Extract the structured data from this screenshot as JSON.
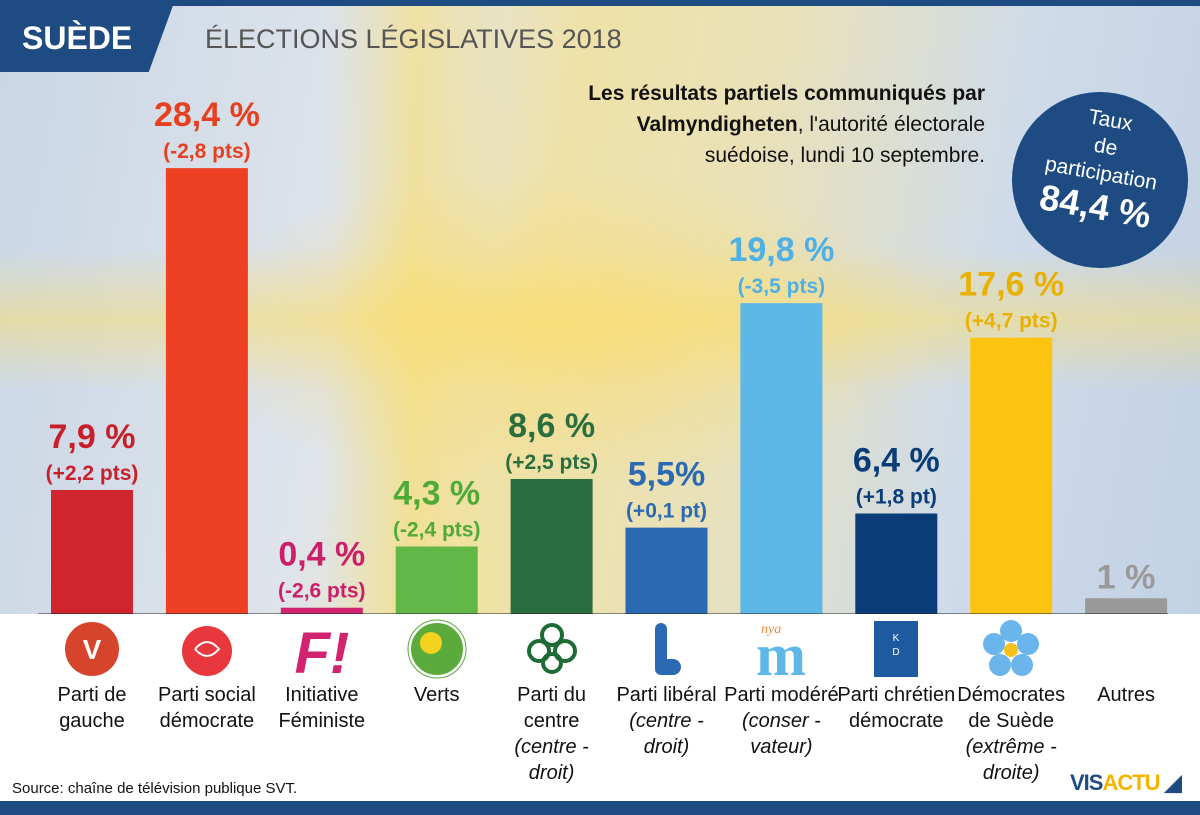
{
  "header": {
    "country": "SUÈDE",
    "title": "ÉLECTIONS LÉGISLATIVES 2018"
  },
  "subtitle": {
    "bold": "Les résultats partiels communiqués par Valmyndigheten",
    "rest": ", l'autorité électorale suédoise, lundi 10 septembre."
  },
  "turnout": {
    "label1": "Taux",
    "label2": "de",
    "label3": "participation",
    "value": "84,4 %"
  },
  "chart_data": {
    "type": "bar",
    "ylim": [
      0,
      30
    ],
    "grid": false,
    "categories": [
      "Parti de gauche",
      "Parti social démocrate",
      "Initiative Féministe",
      "Verts",
      "Parti du centre",
      "Parti libéral",
      "Parti modéré",
      "Parti chrétien démocrate",
      "Démocrates de Suède",
      "Autres"
    ],
    "values": [
      7.9,
      28.4,
      0.4,
      4.3,
      8.6,
      5.5,
      19.8,
      6.4,
      17.6,
      1
    ],
    "value_labels": [
      "7,9 %",
      "28,4 %",
      "0,4 %",
      "4,3 %",
      "8,6 %",
      "5,5%",
      "19,8 %",
      "6,4 %",
      "17,6 %",
      "1 %"
    ],
    "change_labels": [
      "(+2,2 pts)",
      "(-2,8 pts)",
      "(-2,6 pts)",
      "(-2,4 pts)",
      "(+2,5 pts)",
      "(+0,1 pt)",
      "(-3,5 pts)",
      "(+1,8 pt)",
      "(+4,7 pts)",
      ""
    ],
    "colors": [
      "#d0242e",
      "#ee4023",
      "#d1236f",
      "#62b847",
      "#2a6e3f",
      "#2b6ab3",
      "#5db8e8",
      "#0a3c78",
      "#fcc310",
      "#999999"
    ],
    "label_colors": [
      "#c8202b",
      "#e8401f",
      "#cc1f6a",
      "#4faa36",
      "#2a6e3f",
      "#2b6ab3",
      "#4fb0e6",
      "#0a3c78",
      "#e8b000",
      "#999999"
    ]
  },
  "parties": [
    {
      "name": "Parti de gauche",
      "sub": "",
      "logo": "v-flower-icon"
    },
    {
      "name": "Parti social démocrate",
      "sub": "",
      "logo": "rose-icon"
    },
    {
      "name": "Initiative Féministe",
      "sub": "",
      "logo": "f-exclamation-icon"
    },
    {
      "name": "Verts",
      "sub": "",
      "logo": "dandelion-icon"
    },
    {
      "name": "Parti du centre",
      "sub": "(centre - droit)",
      "logo": "clover-icon"
    },
    {
      "name": "Parti libéral",
      "sub": "(centre - droit)",
      "logo": "l-icon"
    },
    {
      "name": "Parti modéré",
      "sub": "(conser - vateur)",
      "logo": "nya-m-icon"
    },
    {
      "name": "Parti chrétien démocrate",
      "sub": "",
      "logo": "kd-icon"
    },
    {
      "name": "Démocrates de Suède",
      "sub": "(extrême - droite)",
      "logo": "blue-flower-icon"
    },
    {
      "name": "Autres",
      "sub": "",
      "logo": ""
    }
  ],
  "source": "Source: chaîne de télévision publique SVT.",
  "brand": {
    "a": "VIS",
    "b": "ACTU"
  }
}
